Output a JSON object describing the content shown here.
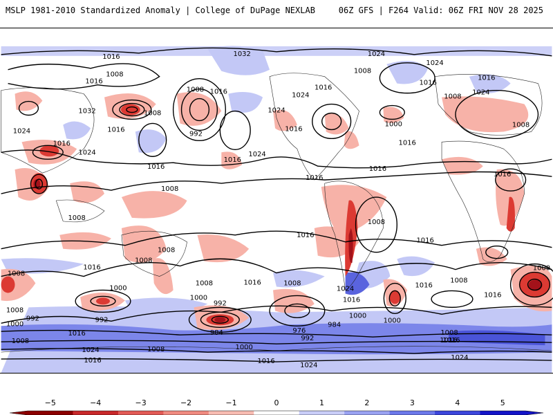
{
  "header": {
    "left_title": "MSLP 1981-2010 Standardized Anomaly | College of DuPage NEXLAB",
    "right_title": "06Z GFS | F264 Valid: 06Z FRI NOV 28 2025"
  },
  "colorbar": {
    "ticks": [
      "−5",
      "−4",
      "−3",
      "−2",
      "−1",
      "0",
      "1",
      "2",
      "3",
      "4",
      "5"
    ],
    "colors": [
      "#8b0000",
      "#c8282a",
      "#e25a55",
      "#f08a80",
      "#f8bcb2",
      "#ffffff",
      "#c9cdf8",
      "#9aa2f2",
      "#6c78ea",
      "#3c46dc",
      "#1414c8"
    ]
  },
  "map": {
    "ocean_color": "#ffffff",
    "positive_color": "#b6bcf4",
    "strong_positive_color": "#7882e8",
    "negative_color": "#f6a89e",
    "strong_negative_color": "#d8302c",
    "isobar_labels": [
      "1016",
      "1032",
      "1024",
      "1024",
      "1008",
      "1008",
      "1016",
      "1016",
      "1016",
      "1024",
      "1016",
      "1032",
      "1008",
      "1016",
      "992",
      "1008",
      "1016",
      "1024",
      "1024",
      "1016",
      "1024",
      "1016",
      "1008",
      "1016",
      "1000",
      "1016",
      "1024",
      "1008",
      "1008",
      "1016",
      "1016",
      "1024",
      "1016",
      "1016",
      "1016",
      "1008",
      "1016",
      "1008",
      "1008",
      "1008",
      "1008",
      "1016",
      "1008",
      "1008",
      "1016",
      "1008",
      "1016",
      "1008",
      "1024",
      "1016",
      "1016",
      "1016",
      "1000",
      "1000",
      "1000",
      "992",
      "992",
      "992",
      "1000",
      "984",
      "976",
      "984",
      "992",
      "1000",
      "1000",
      "1008",
      "1016",
      "1008",
      "1024",
      "1000",
      "1016",
      "1024",
      "1008",
      "1016",
      "1016",
      "1024"
    ]
  }
}
